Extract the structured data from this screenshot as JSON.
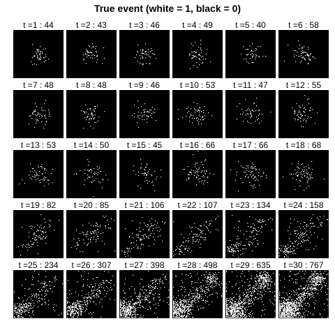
{
  "title": "True event (white = 1, black = 0)",
  "chart_data": {
    "type": "heatmap",
    "title": "True event (white = 1, black = 0)",
    "colors": {
      "one": "#ffffff",
      "zero": "#000000"
    },
    "panels": [
      {
        "label": "t =1  :  44",
        "t": 1,
        "count": 44
      },
      {
        "label": "t =2  :  43",
        "t": 2,
        "count": 43
      },
      {
        "label": "t =3  :  46",
        "t": 3,
        "count": 46
      },
      {
        "label": "t =4  :  49",
        "t": 4,
        "count": 49
      },
      {
        "label": "t =5  :  40",
        "t": 5,
        "count": 40
      },
      {
        "label": "t =6  :  58",
        "t": 6,
        "count": 58
      },
      {
        "label": "t =7  :  48",
        "t": 7,
        "count": 48
      },
      {
        "label": "t =8  :  48",
        "t": 8,
        "count": 48
      },
      {
        "label": "t =9  :  46",
        "t": 9,
        "count": 46
      },
      {
        "label": "t =10  :  53",
        "t": 10,
        "count": 53
      },
      {
        "label": "t =11  :  47",
        "t": 11,
        "count": 47
      },
      {
        "label": "t =12  :  55",
        "t": 12,
        "count": 55
      },
      {
        "label": "t =13  :  53",
        "t": 13,
        "count": 53
      },
      {
        "label": "t =14  :  50",
        "t": 14,
        "count": 50
      },
      {
        "label": "t =15  :  45",
        "t": 15,
        "count": 45
      },
      {
        "label": "t =16  :  66",
        "t": 16,
        "count": 66
      },
      {
        "label": "t =17  :  66",
        "t": 17,
        "count": 66
      },
      {
        "label": "t =18  :  68",
        "t": 18,
        "count": 68
      },
      {
        "label": "t =19  :  82",
        "t": 19,
        "count": 82
      },
      {
        "label": "t =20  :  85",
        "t": 20,
        "count": 85
      },
      {
        "label": "t =21  :  106",
        "t": 21,
        "count": 106
      },
      {
        "label": "t =22  :  107",
        "t": 22,
        "count": 107
      },
      {
        "label": "t =23  :  134",
        "t": 23,
        "count": 134
      },
      {
        "label": "t =24  :  158",
        "t": 24,
        "count": 158
      },
      {
        "label": "t =25  :  234",
        "t": 25,
        "count": 234
      },
      {
        "label": "t =26  :  307",
        "t": 26,
        "count": 307
      },
      {
        "label": "t =27  :  398",
        "t": 27,
        "count": 398
      },
      {
        "label": "t =28  :  498",
        "t": 28,
        "count": 498
      },
      {
        "label": "t =29  :  635",
        "t": 29,
        "count": 635
      },
      {
        "label": "t =30  :  767",
        "t": 30,
        "count": 767
      }
    ]
  }
}
